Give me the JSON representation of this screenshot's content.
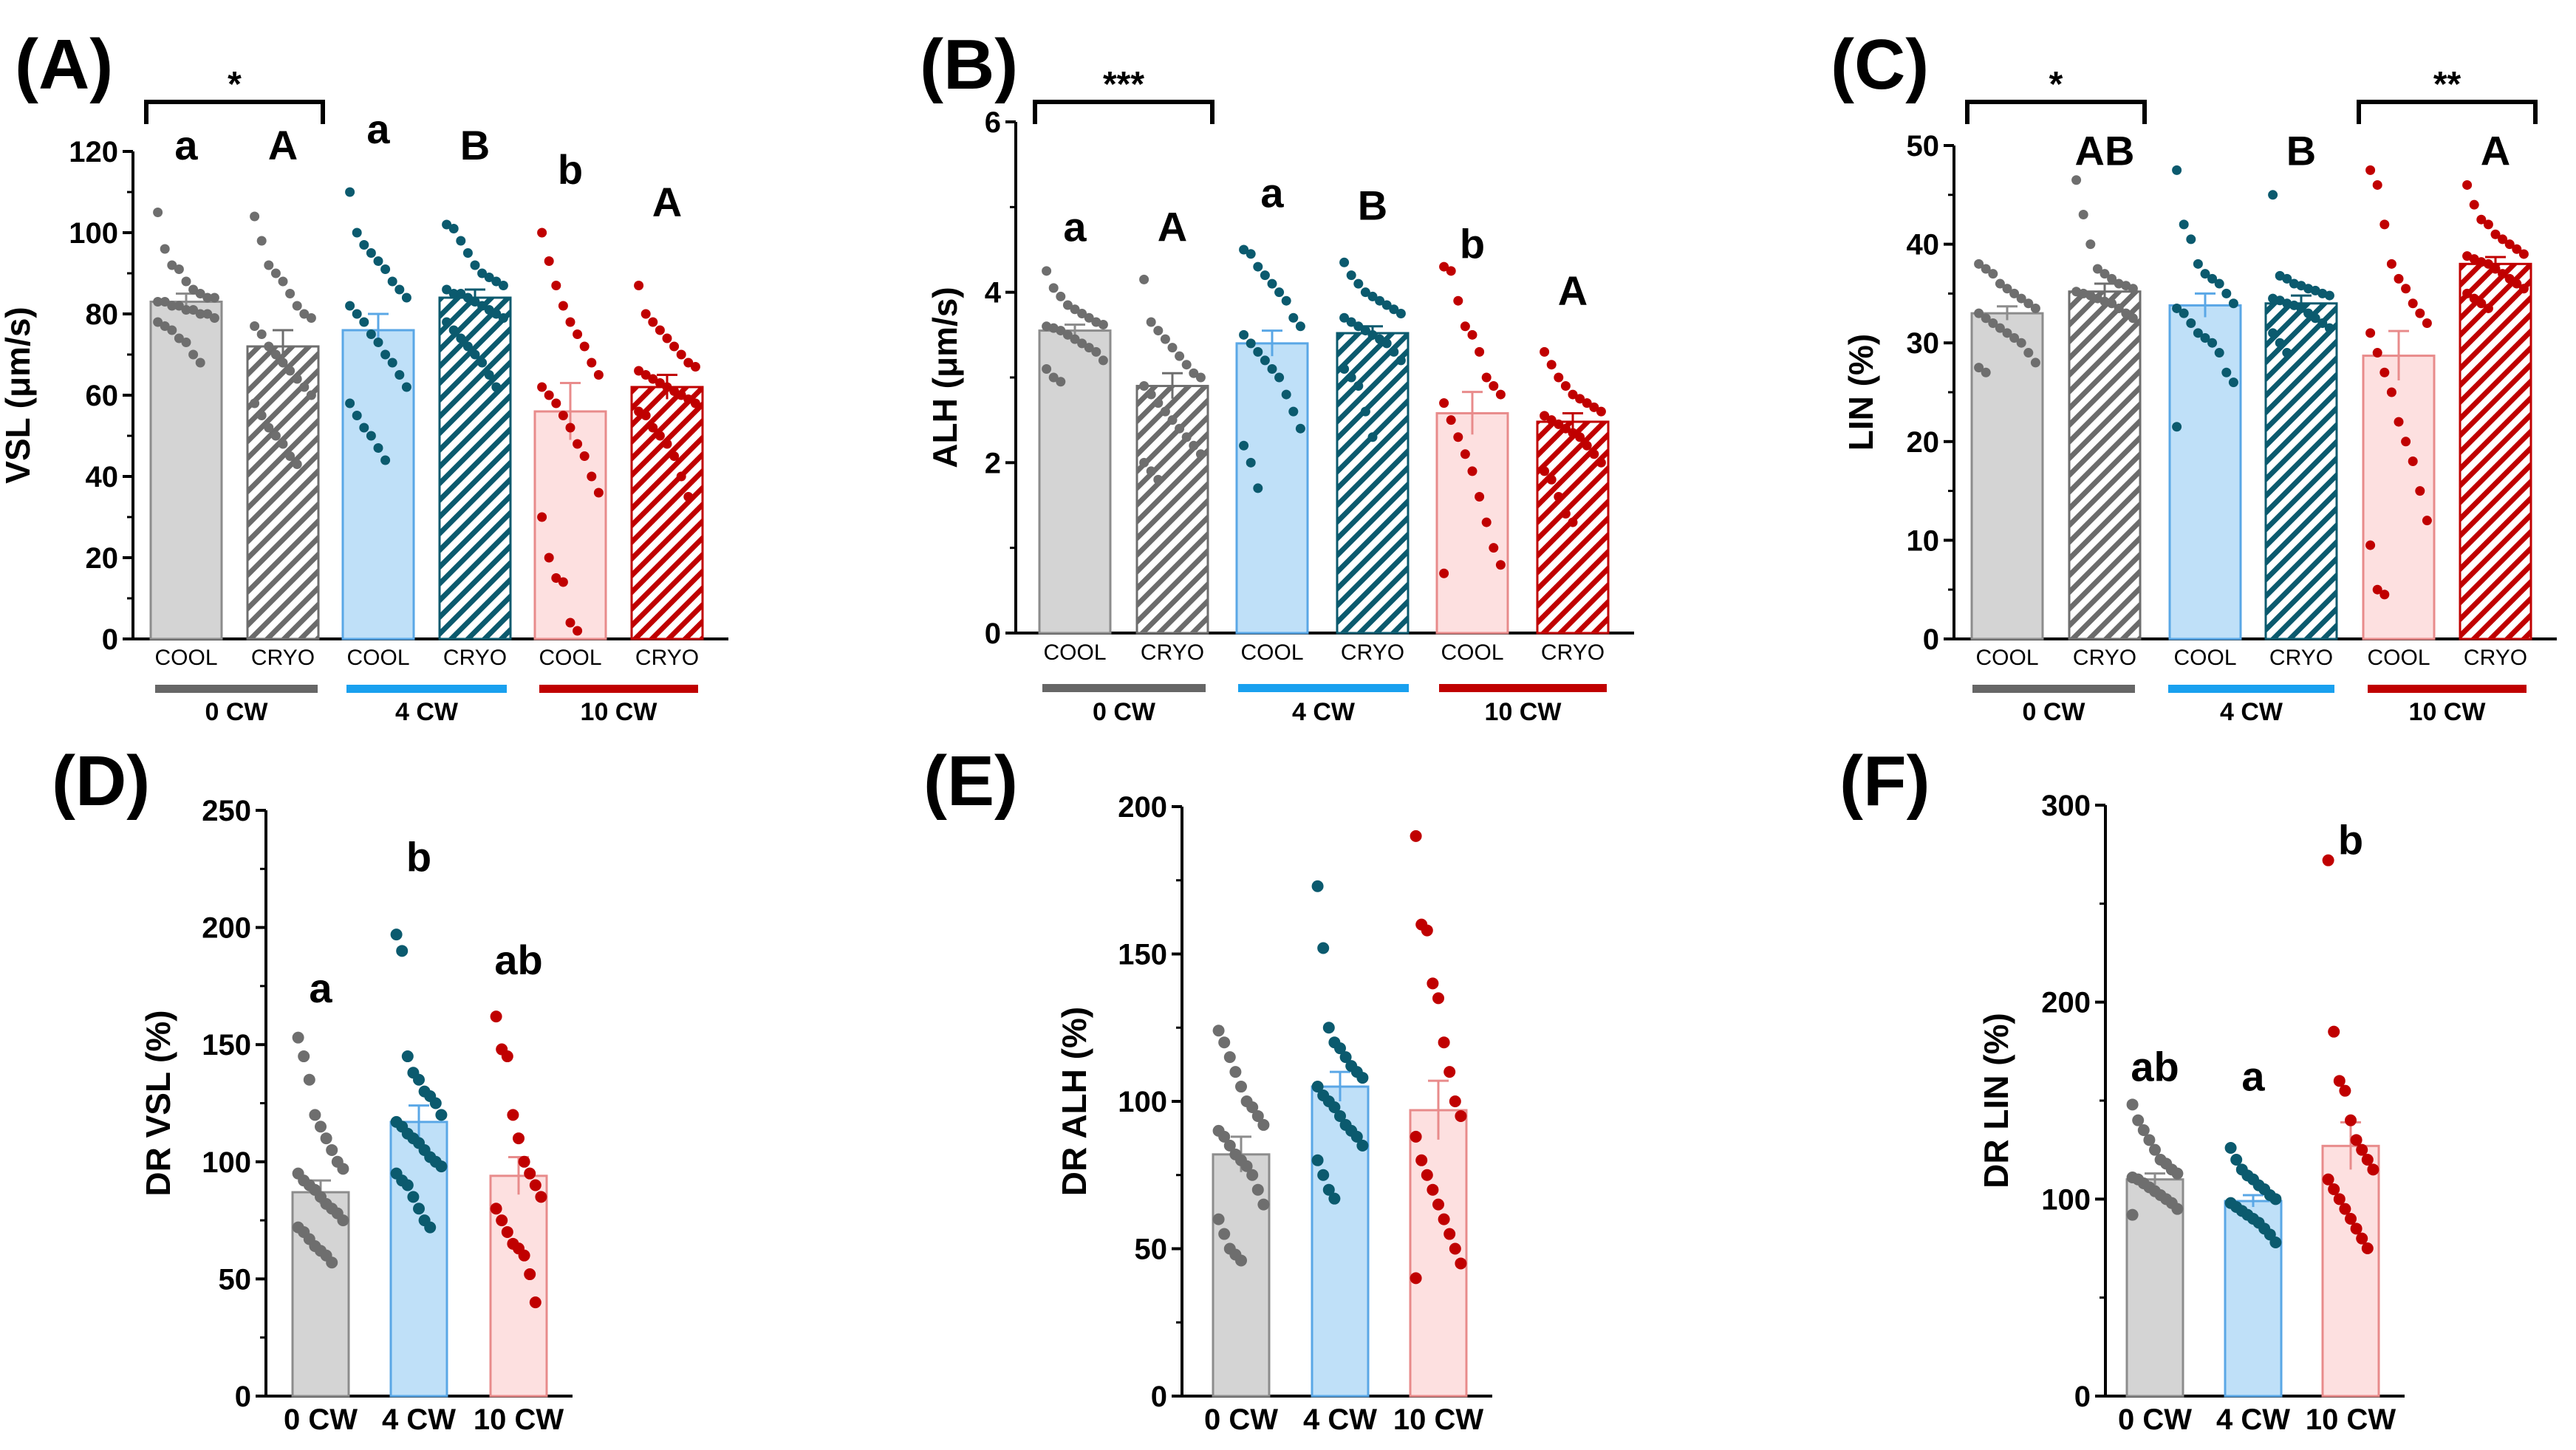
{
  "colors": {
    "gray_fill": "#d4d4d4",
    "gray_edge": "#8c8c8c",
    "gray_dot": "#6e6e6e",
    "blue_fill": "#bfe0f8",
    "blue_edge": "#5aa7e6",
    "blue_dot": "#0b5a6e",
    "red_fill": "#fde0e0",
    "red_edge": "#e88b8b",
    "red_dot": "#c00000",
    "hatch_gray": "#6b6b6b",
    "hatch_blue": "#0b5a6e",
    "hatch_red": "#c00000",
    "bar_gray_line": "#666666",
    "bar_blue_line": "#19a0ef",
    "bar_red_line": "#c00000"
  },
  "chart_data": [
    {
      "id": "A",
      "panel_label": "(A)",
      "type": "bar",
      "ylabel": "VSL (μm/s)",
      "ylim": [
        0,
        120
      ],
      "yticks": [
        "0",
        "20",
        "40",
        "60",
        "80",
        "100",
        "120"
      ],
      "categories": [
        "COOL",
        "CRYO",
        "COOL",
        "CRYO",
        "COOL",
        "CRYO"
      ],
      "groups": [
        "0 CW",
        "4 CW",
        "10 CW"
      ],
      "values": [
        83,
        72,
        76,
        84,
        56,
        62
      ],
      "sem": [
        2,
        4,
        4,
        2,
        7,
        3
      ],
      "letters": [
        "a",
        "A",
        "a",
        "B",
        "b",
        "A"
      ],
      "letter_y": [
        118,
        118,
        122,
        118,
        112,
        104
      ],
      "significance": [
        {
          "from": 0,
          "to": 1,
          "label": "*"
        }
      ],
      "points": [
        [
          105,
          96,
          92,
          91,
          88,
          86,
          85,
          84,
          84,
          83,
          83,
          82,
          82,
          81,
          81,
          80,
          80,
          79,
          78,
          77,
          76,
          74,
          73,
          70,
          68
        ],
        [
          104,
          98,
          92,
          90,
          88,
          85,
          82,
          80,
          79,
          77,
          75,
          72,
          70,
          68,
          66,
          64,
          62,
          60,
          58,
          55,
          52,
          50,
          48,
          45,
          43
        ],
        [
          110,
          100,
          97,
          95,
          93,
          91,
          88,
          86,
          84,
          82,
          80,
          78,
          75,
          73,
          70,
          68,
          65,
          62,
          58,
          55,
          52,
          50,
          47,
          44
        ],
        [
          102,
          101,
          98,
          95,
          92,
          90,
          89,
          88,
          87,
          86,
          85,
          85,
          84,
          83,
          82,
          81,
          80,
          79,
          78,
          76,
          74,
          72,
          70,
          68,
          65,
          62
        ],
        [
          100,
          93,
          87,
          82,
          78,
          75,
          72,
          68,
          65,
          62,
          60,
          58,
          55,
          52,
          48,
          45,
          40,
          36,
          30,
          20,
          15,
          14,
          4,
          2
        ],
        [
          87,
          80,
          78,
          76,
          74,
          72,
          70,
          68,
          67,
          66,
          65,
          64,
          63,
          62,
          61,
          60,
          59,
          58,
          56,
          55,
          52,
          50,
          48,
          45,
          40,
          35
        ]
      ]
    },
    {
      "id": "B",
      "panel_label": "(B)",
      "type": "bar",
      "ylabel": "ALH (μm/s)",
      "ylim": [
        0,
        6
      ],
      "yticks": [
        "0",
        "2",
        "4",
        "6"
      ],
      "categories": [
        "COOL",
        "CRYO",
        "COOL",
        "CRYO",
        "COOL",
        "CRYO"
      ],
      "groups": [
        "0 CW",
        "4 CW",
        "10 CW"
      ],
      "values": [
        3.55,
        2.9,
        3.4,
        3.52,
        2.58,
        2.48
      ],
      "sem": [
        0.07,
        0.15,
        0.15,
        0.08,
        0.25,
        0.1
      ],
      "letters": [
        "a",
        "A",
        "a",
        "B",
        "b",
        "A"
      ],
      "letter_y": [
        4.6,
        4.6,
        5.0,
        4.85,
        4.4,
        3.85
      ],
      "significance": [
        {
          "from": 0,
          "to": 1,
          "label": "***"
        }
      ],
      "points": [
        [
          4.25,
          4.05,
          3.95,
          3.85,
          3.8,
          3.75,
          3.7,
          3.65,
          3.62,
          3.6,
          3.58,
          3.55,
          3.5,
          3.45,
          3.4,
          3.35,
          3.3,
          3.2,
          3.1,
          3.0,
          2.95
        ],
        [
          4.15,
          3.65,
          3.55,
          3.45,
          3.35,
          3.25,
          3.15,
          3.05,
          3.0,
          2.9,
          2.8,
          2.7,
          2.6,
          2.5,
          2.4,
          2.3,
          2.2,
          2.1,
          2.0,
          1.9,
          1.8
        ],
        [
          4.5,
          4.45,
          4.3,
          4.2,
          4.1,
          4.0,
          3.9,
          3.7,
          3.6,
          3.5,
          3.4,
          3.3,
          3.2,
          3.1,
          3.0,
          2.8,
          2.6,
          2.4,
          2.2,
          2.0,
          1.7
        ],
        [
          4.35,
          4.2,
          4.1,
          4.0,
          3.95,
          3.9,
          3.85,
          3.8,
          3.75,
          3.7,
          3.65,
          3.6,
          3.55,
          3.5,
          3.45,
          3.4,
          3.3,
          3.2,
          3.1,
          3.0,
          2.9,
          2.6,
          2.3
        ],
        [
          4.3,
          4.25,
          3.9,
          3.6,
          3.5,
          3.3,
          3.0,
          2.9,
          2.8,
          2.7,
          2.5,
          2.3,
          2.1,
          1.9,
          1.6,
          1.3,
          1.0,
          0.8,
          0.7
        ],
        [
          3.3,
          3.15,
          3.0,
          2.9,
          2.8,
          2.75,
          2.7,
          2.65,
          2.6,
          2.55,
          2.5,
          2.45,
          2.4,
          2.35,
          2.3,
          2.2,
          2.1,
          2.0,
          1.9,
          1.8,
          1.6,
          1.4,
          1.3
        ]
      ]
    },
    {
      "id": "C",
      "panel_label": "(C)",
      "type": "bar",
      "ylabel": "LIN (%)",
      "ylim": [
        0,
        50
      ],
      "yticks": [
        "0",
        "10",
        "20",
        "30",
        "40",
        "50"
      ],
      "categories": [
        "COOL",
        "CRYO",
        "COOL",
        "CRYO",
        "COOL",
        "CRYO"
      ],
      "groups": [
        "0 CW",
        "4 CW",
        "10 CW"
      ],
      "values": [
        33,
        35.2,
        33.8,
        34,
        28.7,
        38
      ],
      "sem": [
        0.7,
        0.8,
        1.2,
        0.8,
        2.5,
        0.7
      ],
      "letters": [
        "",
        "AB",
        "",
        "B",
        "",
        "A"
      ],
      "letter_y": [
        0,
        48,
        0,
        48,
        0,
        48
      ],
      "significance": [
        {
          "from": 0,
          "to": 1,
          "label": "*"
        },
        {
          "from": 4,
          "to": 5,
          "label": "**"
        }
      ],
      "points": [
        [
          38,
          37.5,
          37,
          36,
          35.5,
          35,
          34.5,
          34,
          33.5,
          33,
          32.5,
          32,
          31.5,
          31,
          30.5,
          30,
          29,
          28,
          27.5,
          27
        ],
        [
          46.5,
          43,
          40,
          37.5,
          37,
          36.5,
          36,
          35.8,
          35.5,
          35.2,
          35,
          34.8,
          34.5,
          34.2,
          34,
          33.5,
          33,
          32.5
        ],
        [
          47.5,
          42,
          40.5,
          38,
          37,
          36.5,
          36,
          35,
          34,
          33.5,
          33,
          32,
          31,
          30.5,
          30,
          29,
          27,
          26,
          21.5
        ],
        [
          45,
          36.8,
          36.5,
          36,
          35.8,
          35.5,
          35.3,
          35,
          34.8,
          34.5,
          34.3,
          34,
          33.8,
          33.5,
          33,
          32.5,
          32,
          31.5,
          31,
          30,
          29
        ],
        [
          47.5,
          46,
          42,
          38,
          36.5,
          35.5,
          34,
          33,
          32,
          31,
          29,
          27,
          25,
          22,
          20,
          18,
          15,
          12,
          9.5,
          5,
          4.5
        ],
        [
          46,
          44,
          42.5,
          42,
          41,
          40.5,
          40,
          39.5,
          39,
          38.8,
          38.5,
          38.2,
          38,
          37.5,
          37,
          36.5,
          36,
          35.5,
          35,
          34.5,
          34,
          33.5
        ]
      ]
    },
    {
      "id": "D",
      "panel_label": "(D)",
      "type": "bar",
      "ylabel": "DR VSL (%)",
      "ylim": [
        0,
        250
      ],
      "yticks": [
        "0",
        "50",
        "100",
        "150",
        "200",
        "250"
      ],
      "categories": [
        "0 CW",
        "4 CW",
        "10 CW"
      ],
      "values": [
        87,
        117,
        94
      ],
      "sem": [
        5,
        7,
        8
      ],
      "letters": [
        "a",
        "b",
        "ab"
      ],
      "letter_y": [
        168,
        224,
        180
      ],
      "points": [
        [
          153,
          145,
          135,
          120,
          115,
          110,
          105,
          100,
          97,
          95,
          92,
          90,
          88,
          85,
          82,
          80,
          78,
          75,
          72,
          70,
          67,
          64,
          62,
          60,
          57
        ],
        [
          197,
          190,
          145,
          138,
          135,
          130,
          128,
          125,
          120,
          117,
          115,
          112,
          110,
          108,
          105,
          102,
          100,
          98,
          95,
          92,
          90,
          85,
          80,
          75,
          72
        ],
        [
          162,
          148,
          145,
          120,
          110,
          100,
          95,
          90,
          85,
          80,
          75,
          70,
          65,
          63,
          60,
          52,
          40
        ]
      ]
    },
    {
      "id": "E",
      "panel_label": "(E)",
      "type": "bar",
      "ylabel": "DR ALH (%)",
      "ylim": [
        0,
        200
      ],
      "yticks": [
        "0",
        "50",
        "100",
        "150",
        "200"
      ],
      "categories": [
        "0 CW",
        "4 CW",
        "10 CW"
      ],
      "values": [
        82,
        105,
        97
      ],
      "sem": [
        6,
        5,
        10
      ],
      "letters": [
        "",
        "",
        ""
      ],
      "letter_y": [
        0,
        0,
        0
      ],
      "points": [
        [
          124,
          120,
          115,
          110,
          105,
          100,
          98,
          95,
          92,
          90,
          88,
          85,
          82,
          80,
          78,
          75,
          70,
          65,
          60,
          55,
          50,
          48,
          46
        ],
        [
          173,
          152,
          125,
          120,
          118,
          115,
          112,
          110,
          108,
          105,
          102,
          100,
          98,
          95,
          92,
          90,
          88,
          85,
          80,
          75,
          70,
          67
        ],
        [
          190,
          160,
          158,
          140,
          135,
          120,
          110,
          100,
          95,
          88,
          80,
          75,
          70,
          65,
          60,
          55,
          50,
          45,
          40
        ]
      ]
    },
    {
      "id": "F",
      "panel_label": "(F)",
      "type": "bar",
      "ylabel": "DR LIN (%)",
      "ylim": [
        0,
        300
      ],
      "yticks": [
        "0",
        "100",
        "200",
        "300"
      ],
      "categories": [
        "0 CW",
        "4 CW",
        "10 CW"
      ],
      "values": [
        110,
        99,
        127
      ],
      "sem": [
        3,
        3,
        12
      ],
      "letters": [
        "ab",
        "a",
        "b"
      ],
      "letter_y": [
        160,
        155,
        275
      ],
      "points": [
        [
          148,
          140,
          135,
          130,
          125,
          120,
          118,
          115,
          113,
          111,
          110,
          108,
          106,
          104,
          102,
          100,
          98,
          95,
          92
        ],
        [
          126,
          120,
          115,
          112,
          110,
          107,
          105,
          102,
          100,
          98,
          96,
          94,
          92,
          90,
          88,
          85,
          82,
          78
        ],
        [
          272,
          185,
          160,
          155,
          140,
          130,
          125,
          120,
          115,
          110,
          105,
          100,
          95,
          90,
          85,
          80,
          75
        ]
      ]
    }
  ]
}
